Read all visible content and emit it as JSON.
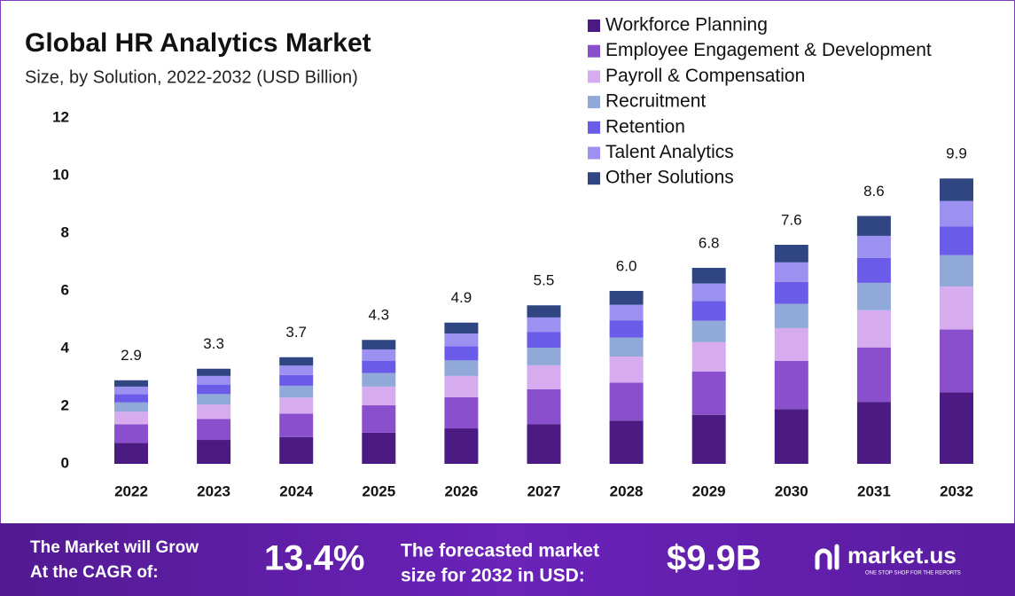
{
  "chart_data": {
    "type": "stacked_bar",
    "title": "Global HR Analytics Market",
    "subtitle": "Size, by Solution, 2022-2032 (USD Billion)",
    "categories": [
      "2022",
      "2023",
      "2024",
      "2025",
      "2026",
      "2027",
      "2028",
      "2029",
      "2030",
      "2031",
      "2032"
    ],
    "series": [
      {
        "name": "Workforce Planning",
        "color": "#4b1a82",
        "values": [
          0.73,
          0.83,
          0.93,
          1.08,
          1.23,
          1.38,
          1.5,
          1.7,
          1.9,
          2.15,
          2.48
        ]
      },
      {
        "name": "Employee Engagement & Development",
        "color": "#8a4fcc",
        "values": [
          0.64,
          0.73,
          0.81,
          0.95,
          1.08,
          1.21,
          1.32,
          1.5,
          1.67,
          1.89,
          2.18
        ]
      },
      {
        "name": "Payroll & Compensation",
        "color": "#d7acee",
        "values": [
          0.44,
          0.5,
          0.56,
          0.65,
          0.74,
          0.83,
          0.9,
          1.02,
          1.14,
          1.29,
          1.49
        ]
      },
      {
        "name": "Recruitment",
        "color": "#90a9d9",
        "values": [
          0.32,
          0.36,
          0.41,
          0.47,
          0.54,
          0.61,
          0.66,
          0.75,
          0.84,
          0.95,
          1.09
        ]
      },
      {
        "name": "Retention",
        "color": "#6b5be9",
        "values": [
          0.29,
          0.33,
          0.37,
          0.43,
          0.49,
          0.55,
          0.6,
          0.68,
          0.76,
          0.86,
          0.99
        ]
      },
      {
        "name": "Talent Analytics",
        "color": "#9c90f0",
        "values": [
          0.26,
          0.3,
          0.33,
          0.39,
          0.44,
          0.5,
          0.54,
          0.61,
          0.68,
          0.77,
          0.89
        ]
      },
      {
        "name": "Other Solutions",
        "color": "#2f4682",
        "values": [
          0.22,
          0.25,
          0.29,
          0.33,
          0.38,
          0.42,
          0.48,
          0.54,
          0.61,
          0.69,
          0.78
        ]
      }
    ],
    "totals": [
      2.9,
      3.3,
      3.7,
      4.3,
      4.9,
      5.5,
      6.0,
      6.8,
      7.6,
      8.6,
      9.9
    ],
    "total_labels": [
      "2.9",
      "3.3",
      "3.7",
      "4.3",
      "4.9",
      "5.5",
      "6.0",
      "6.8",
      "7.6",
      "8.6",
      "9.9"
    ],
    "ylim": [
      0,
      12
    ],
    "yticks": [
      0,
      2,
      4,
      6,
      8,
      10,
      12
    ],
    "legend": "top-right"
  },
  "footer": {
    "cagr_text": [
      "The Market will Grow",
      "At the CAGR of:"
    ],
    "cagr_value": "13.4%",
    "forecast_text": [
      "The forecasted market",
      "size for 2032 in USD:"
    ],
    "forecast_value": "$9.9B",
    "brand": "market.us",
    "tagline": "ONE STOP SHOP FOR THE REPORTS"
  }
}
